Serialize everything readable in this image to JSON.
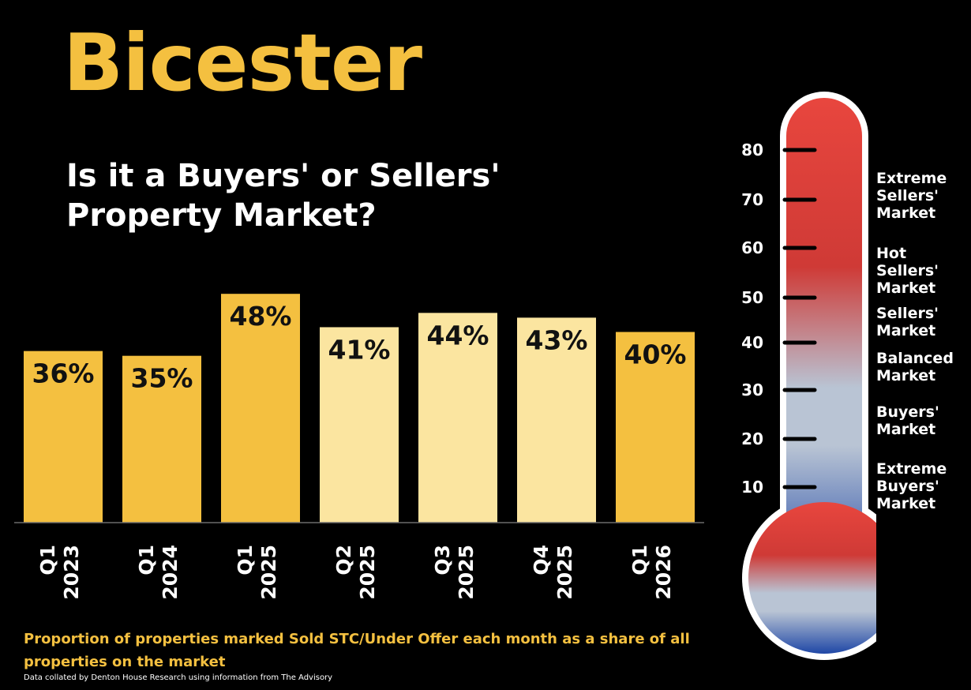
{
  "header": {
    "title": "Bicester",
    "subtitle": "Is it a Buyers' or Sellers' Property Market?"
  },
  "footer": {
    "caption": "Proportion of properties marked Sold STC/Under Offer each month as a share of all properties on the market",
    "source": "Data collated by Denton House Research using information from The Advisory"
  },
  "colors": {
    "bar_dark": "#f4c040",
    "bar_light": "#fbe5a0",
    "title": "#f4c040"
  },
  "chart_data": {
    "type": "bar",
    "title": "",
    "xlabel": "",
    "ylabel": "",
    "categories": [
      {
        "quarter": "Q1",
        "year": "2023"
      },
      {
        "quarter": "Q1",
        "year": "2024"
      },
      {
        "quarter": "Q1",
        "year": "2025"
      },
      {
        "quarter": "Q2",
        "year": "2025"
      },
      {
        "quarter": "Q3",
        "year": "2025"
      },
      {
        "quarter": "Q4",
        "year": "2025"
      },
      {
        "quarter": "Q1",
        "year": "2026"
      }
    ],
    "values": [
      36,
      35,
      48,
      41,
      44,
      43,
      40
    ],
    "value_labels": [
      "36%",
      "35%",
      "48%",
      "41%",
      "44%",
      "43%",
      "40%"
    ],
    "bar_shades": [
      "dark",
      "dark",
      "dark",
      "light",
      "light",
      "light",
      "dark"
    ],
    "ylim": [
      0,
      53
    ],
    "grid": false,
    "legend": "none"
  },
  "thermometer": {
    "scale": [
      80,
      70,
      60,
      50,
      40,
      30,
      20,
      10
    ],
    "colors": {
      "top": "#e8463e",
      "upper": "#cf3a36",
      "middle": "#b9c4d4",
      "bottom": "#1f47a6"
    },
    "zones": [
      {
        "label": "Extreme Sellers' Market",
        "lines": [
          "Extreme",
          "Sellers'",
          "Market"
        ]
      },
      {
        "label": "Hot Sellers' Market",
        "lines": [
          "Hot",
          "Sellers'",
          "Market"
        ]
      },
      {
        "label": "Sellers' Market",
        "lines": [
          "Sellers'",
          "Market"
        ]
      },
      {
        "label": "Balanced Market",
        "lines": [
          "Balanced",
          "Market"
        ]
      },
      {
        "label": "Buyers' Market",
        "lines": [
          "Buyers'",
          "Market"
        ]
      },
      {
        "label": "Extreme Buyers' Market",
        "lines": [
          "Extreme",
          "Buyers'",
          "Market"
        ]
      }
    ]
  }
}
